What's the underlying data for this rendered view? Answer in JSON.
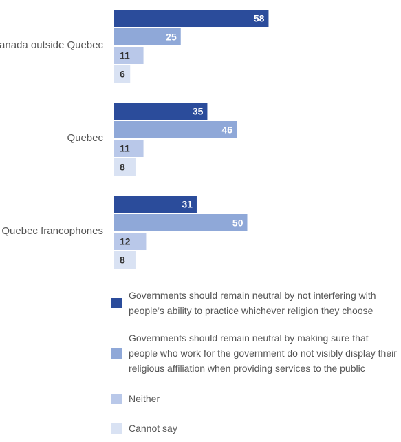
{
  "chart_data": {
    "type": "bar",
    "orientation": "horizontal",
    "categories": [
      "Canada outside Quebec",
      "Quebec",
      "Quebec francophones"
    ],
    "series": [
      {
        "name": "Governments should remain neutral by not interfering with people’s ability to practice whichever religion they choose",
        "values": [
          58,
          35,
          31
        ],
        "color": "#2b4c9b",
        "label_color": "#ffffff"
      },
      {
        "name": "Governments should remain neutral by making sure that people who work for the government do not visibly display their religious affiliation when providing services to the public",
        "values": [
          25,
          46,
          50
        ],
        "color": "#8fa8d8",
        "label_color": "#ffffff"
      },
      {
        "name": "Neither",
        "values": [
          11,
          11,
          12
        ],
        "color": "#b9c8e9",
        "label_color": "#333333"
      },
      {
        "name": "Cannot say",
        "values": [
          6,
          8,
          8
        ],
        "color": "#d9e2f3",
        "label_color": "#333333"
      }
    ],
    "xlim": [
      0,
      100
    ],
    "grid": false,
    "legend_position": "bottom"
  }
}
